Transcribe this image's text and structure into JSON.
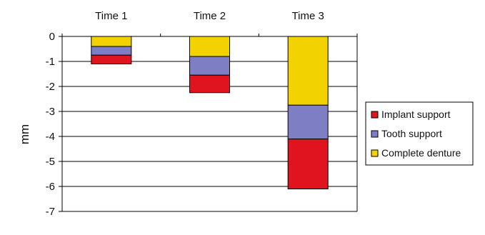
{
  "chart_data": {
    "type": "bar",
    "stacked": true,
    "categories": [
      "Time 1",
      "Time 2",
      "Time 3"
    ],
    "category_axis_position": "top",
    "series": [
      {
        "name": "Complete denture",
        "values": [
          -0.4,
          -0.8,
          -2.75
        ],
        "color": "#F2D200"
      },
      {
        "name": "Tooth support",
        "values": [
          -0.35,
          -0.75,
          -1.35
        ],
        "color": "#7E7EC4"
      },
      {
        "name": "Implant support",
        "values": [
          -0.35,
          -0.7,
          -2.0
        ],
        "color": "#E0141E"
      }
    ],
    "legend_order": [
      "Implant support",
      "Tooth support",
      "Complete denture"
    ],
    "legend_position": "right",
    "ylabel": "mm",
    "ylim": [
      -7,
      0
    ],
    "yticks": [
      "0",
      "-1",
      "-2",
      "-3",
      "-4",
      "-5",
      "-6",
      "-7"
    ],
    "grid": true
  }
}
